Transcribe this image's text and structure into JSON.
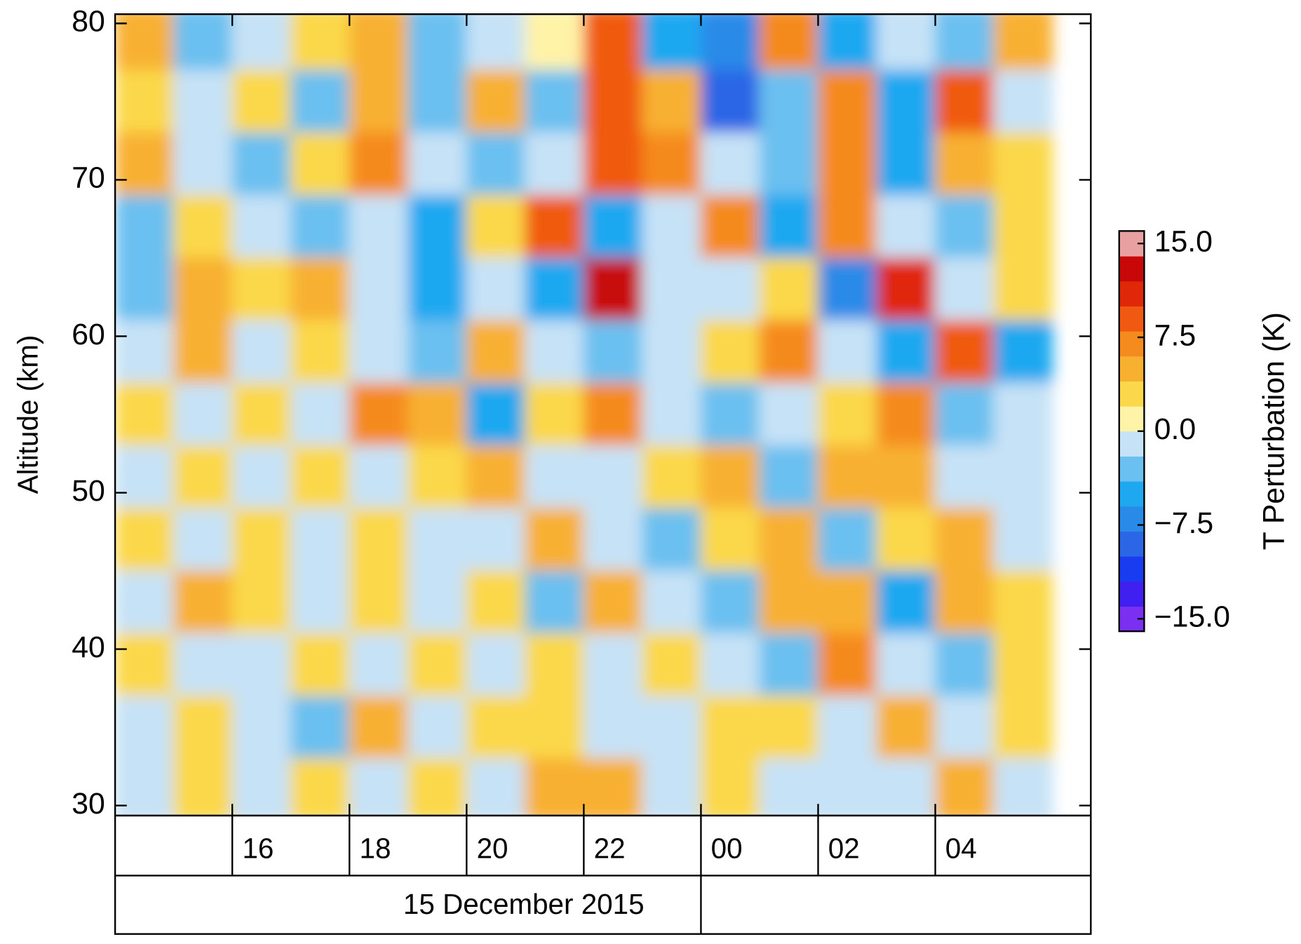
{
  "chart_data": {
    "type": "heatmap",
    "ylabel": "Altitude (km)",
    "colorbar_label": "T Perturbation (K)",
    "date_label": "15 December 2015",
    "x": [
      14.5,
      15.5,
      16.5,
      17.5,
      18.5,
      19.5,
      20.5,
      21.5,
      22.5,
      23.5,
      24.5,
      25.5,
      26.5,
      27.5,
      28.5,
      29.5
    ],
    "y": [
      79,
      75,
      71,
      67,
      63,
      59,
      55,
      51,
      47,
      43,
      39,
      35,
      31
    ],
    "z": [
      [
        4,
        -3,
        -2,
        3,
        4,
        -4,
        -2,
        0,
        8,
        -5,
        -8,
        6,
        -5,
        -2,
        -4,
        5
      ],
      [
        3,
        -2,
        3,
        -4,
        5,
        -3,
        4,
        -4,
        9,
        5,
        -9,
        -4,
        6,
        -5,
        8,
        -2
      ],
      [
        5,
        -2,
        -4,
        2,
        6,
        -2,
        -4,
        -1,
        9,
        6,
        -1,
        -4,
        7,
        -5,
        5,
        3
      ],
      [
        -4,
        3,
        -1,
        -4,
        -1,
        -5,
        3,
        9,
        -5,
        -2,
        7,
        -6,
        7,
        -1,
        -4,
        3
      ],
      [
        -3,
        4,
        3,
        4,
        -2,
        -5,
        -1,
        -5,
        12,
        -2,
        -1,
        2,
        -7,
        10,
        -2,
        2
      ],
      [
        -2,
        4,
        -2,
        3,
        -1,
        -4,
        5,
        -2,
        -3,
        -1,
        2,
        7,
        -2,
        -6,
        8,
        -5
      ],
      [
        2,
        -2,
        3,
        -1,
        6,
        5,
        -6,
        2,
        6,
        -2,
        -4,
        -1,
        2,
        6,
        -4,
        -2
      ],
      [
        -2,
        2,
        -2,
        2,
        -2,
        3,
        5,
        -2,
        -1,
        2,
        4,
        -3,
        4,
        5,
        -2,
        -1
      ],
      [
        3,
        -2,
        2,
        -2,
        2,
        -2,
        -1,
        4,
        -2,
        -3,
        2,
        5,
        -4,
        3,
        4,
        -2
      ],
      [
        -2,
        4,
        3,
        -2,
        2,
        -2,
        2,
        -4,
        4,
        -2,
        -4,
        5,
        4,
        -5,
        5,
        2
      ],
      [
        2,
        -2,
        -2,
        2,
        -2,
        3,
        -1,
        2,
        -2,
        2,
        -2,
        -3,
        6,
        -2,
        -4,
        2
      ],
      [
        -2,
        2,
        -2,
        -3,
        4,
        -2,
        2,
        3,
        -2,
        -2,
        2,
        3,
        -2,
        4,
        -2,
        2
      ],
      [
        -2,
        2,
        -2,
        2,
        -2,
        2,
        -2,
        4,
        4,
        -2,
        2,
        -2,
        -2,
        -1,
        5,
        -2
      ]
    ],
    "xlim": [
      14,
      30.655
    ],
    "ylim": [
      29.36,
      80.59
    ],
    "zlim": [
      -16,
      16
    ],
    "xticks": [
      16,
      18,
      20,
      22,
      {
        "value": 24,
        "label": "00"
      },
      {
        "value": 26,
        "label": "02"
      },
      {
        "value": 28,
        "label": "04"
      }
    ],
    "yticks": [
      30,
      40,
      50,
      60,
      70,
      80
    ],
    "colorbar_ticks": [
      {
        "value": 15,
        "label": "15.0"
      },
      7.5,
      {
        "value": 0,
        "label": "0.0"
      },
      {
        "value": -7.5,
        "label": "−7.5"
      },
      {
        "value": -15,
        "label": "−15.0"
      }
    ],
    "colormap": [
      "#7b2ff0",
      "#4020f0",
      "#1a3cf0",
      "#2a66e6",
      "#2a8ae8",
      "#1ea8f0",
      "#6ac0f0",
      "#c6e2f6",
      "#fff3a8",
      "#fbd84a",
      "#f8b030",
      "#f58a1e",
      "#f05a10",
      "#e02808",
      "#c80808",
      "#e8a0a0"
    ]
  }
}
